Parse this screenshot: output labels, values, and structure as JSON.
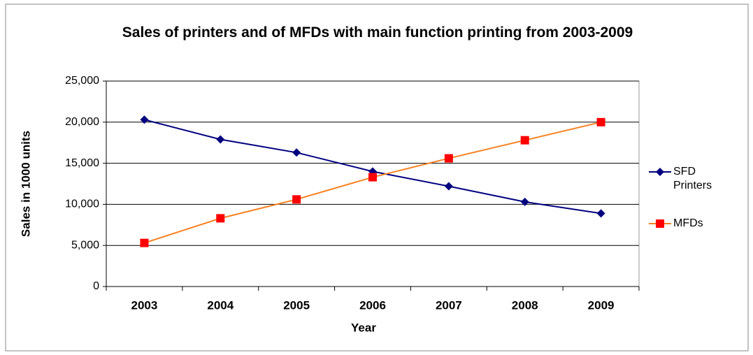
{
  "chart_data": {
    "type": "line",
    "title": "Sales of printers and of MFDs with main function printing from 2003-2009",
    "x_label": "Year",
    "y_label": "Sales in 1000 units",
    "categories": [
      "2003",
      "2004",
      "2005",
      "2006",
      "2007",
      "2008",
      "2009"
    ],
    "series": [
      {
        "name": "SFD Printers",
        "color": "#000080",
        "marker": "diamond",
        "marker_color": "#000080",
        "values": [
          20300,
          17900,
          16300,
          14000,
          12200,
          10300,
          8900
        ]
      },
      {
        "name": "MFDs",
        "color": "#f7801e",
        "marker": "square",
        "marker_color": "#ff0000",
        "values": [
          5300,
          8300,
          10600,
          13300,
          15600,
          17800,
          20000
        ]
      }
    ],
    "ylim": [
      0,
      25000
    ],
    "yticks": [
      0,
      {
        "value": 5000,
        "label": "5,000"
      },
      {
        "value": 10000,
        "label": "10,000"
      },
      {
        "value": 15000,
        "label": "15,000"
      },
      {
        "value": 20000,
        "label": "20,000"
      },
      {
        "value": 25000,
        "label": "25,000"
      }
    ],
    "grid": true,
    "legend": "right"
  }
}
